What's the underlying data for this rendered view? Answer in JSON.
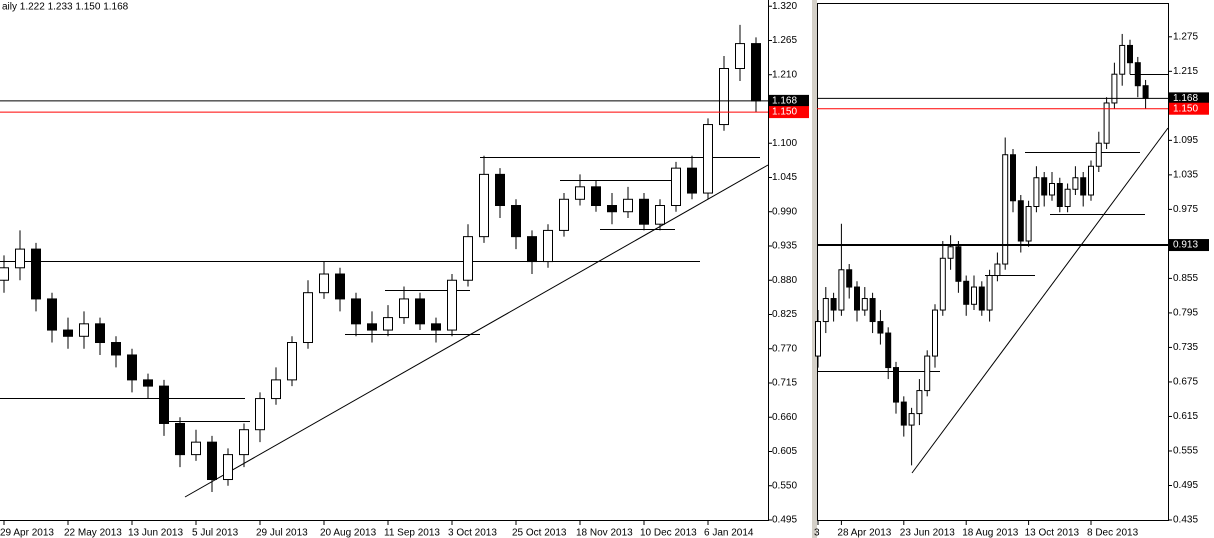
{
  "chart_data": [
    {
      "type": "candlestick",
      "title": "aily 1.222 1.233 1.150 1.168",
      "categories": [
        "29 Apr 2013",
        null,
        null,
        null,
        "22 May 2013",
        null,
        null,
        null,
        "13 Jun 2013",
        null,
        null,
        null,
        "5 Jul 2013",
        null,
        null,
        null,
        "29 Jul 2013",
        null,
        null,
        null,
        "20 Aug 2013",
        null,
        null,
        null,
        "11 Sep 2013",
        null,
        null,
        null,
        "3 Oct 2013",
        null,
        null,
        null,
        "25 Oct 2013",
        null,
        null,
        null,
        "18 Nov 2013",
        null,
        null,
        null,
        "10 Dec 2013",
        null,
        null,
        null,
        "6 Jan 2014",
        null,
        null,
        null
      ],
      "open": [
        0.88,
        0.9,
        0.93,
        0.85,
        0.8,
        0.79,
        0.81,
        0.78,
        0.76,
        0.72,
        0.71,
        0.65,
        0.6,
        0.62,
        0.56,
        0.6,
        0.64,
        0.69,
        0.72,
        0.78,
        0.86,
        0.89,
        0.85,
        0.81,
        0.8,
        0.82,
        0.85,
        0.81,
        0.8,
        0.88,
        0.95,
        1.05,
        1.0,
        0.95,
        0.91,
        0.96,
        1.01,
        1.03,
        1.0,
        0.99,
        1.01,
        0.97,
        1.0,
        1.06,
        1.02,
        1.13,
        1.22,
        1.26
      ],
      "high": [
        0.92,
        0.96,
        0.94,
        0.86,
        0.82,
        0.83,
        0.82,
        0.79,
        0.77,
        0.73,
        0.72,
        0.66,
        0.64,
        0.63,
        0.61,
        0.65,
        0.7,
        0.74,
        0.79,
        0.88,
        0.91,
        0.9,
        0.86,
        0.83,
        0.84,
        0.87,
        0.86,
        0.82,
        0.89,
        0.97,
        1.08,
        1.06,
        1.01,
        0.96,
        0.97,
        1.02,
        1.05,
        1.04,
        1.02,
        1.03,
        1.02,
        1.01,
        1.07,
        1.08,
        1.14,
        1.24,
        1.29,
        1.27
      ],
      "low": [
        0.86,
        0.88,
        0.83,
        0.78,
        0.77,
        0.77,
        0.76,
        0.74,
        0.7,
        0.69,
        0.63,
        0.58,
        0.59,
        0.54,
        0.55,
        0.58,
        0.62,
        0.68,
        0.71,
        0.77,
        0.85,
        0.83,
        0.79,
        0.78,
        0.79,
        0.81,
        0.8,
        0.78,
        0.79,
        0.87,
        0.94,
        0.98,
        0.93,
        0.89,
        0.9,
        0.95,
        1.0,
        0.99,
        0.97,
        0.98,
        0.96,
        0.96,
        0.99,
        1.01,
        1.01,
        1.12,
        1.2,
        1.15
      ],
      "close": [
        0.9,
        0.93,
        0.85,
        0.8,
        0.79,
        0.81,
        0.78,
        0.76,
        0.72,
        0.71,
        0.65,
        0.6,
        0.62,
        0.56,
        0.6,
        0.64,
        0.69,
        0.72,
        0.78,
        0.86,
        0.89,
        0.85,
        0.81,
        0.8,
        0.82,
        0.85,
        0.81,
        0.8,
        0.88,
        0.95,
        1.05,
        1.0,
        0.95,
        0.91,
        0.96,
        1.01,
        1.03,
        1.0,
        0.99,
        1.01,
        0.97,
        1.0,
        1.06,
        1.02,
        1.13,
        1.22,
        1.26,
        1.168
      ],
      "ylim": [
        0.495,
        1.33
      ],
      "yticks": [
        {
          "value": 1.32,
          "label": "1.320"
        },
        {
          "value": 1.265,
          "label": "1.265"
        },
        {
          "value": 1.21,
          "label": "1.210"
        },
        {
          "value": 1.1,
          "label": "1.100"
        },
        {
          "value": 1.045,
          "label": "1.045"
        },
        {
          "value": 0.99,
          "label": "0.990"
        },
        {
          "value": 0.935,
          "label": "0.935"
        },
        {
          "value": 0.88,
          "label": "0.880"
        },
        {
          "value": 0.825,
          "label": "0.825"
        },
        {
          "value": 0.77,
          "label": "0.770"
        },
        {
          "value": 0.715,
          "label": "0.715"
        },
        {
          "value": 0.66,
          "label": "0.660"
        },
        {
          "value": 0.605,
          "label": "0.605"
        },
        {
          "value": 0.55,
          "label": "0.550"
        },
        {
          "value": 0.495,
          "label": "0.495"
        }
      ],
      "price_lines": [
        {
          "value": 1.168,
          "label": "1.168",
          "color": "#000000"
        },
        {
          "value": 1.15,
          "label": "1.150",
          "color": "#ff0000"
        }
      ]
    },
    {
      "type": "candlestick",
      "categories": [
        "3",
        null,
        null,
        "28 Apr 2013",
        null,
        null,
        null,
        null,
        null,
        null,
        null,
        "23 Jun 2013",
        null,
        null,
        null,
        null,
        null,
        null,
        null,
        "18 Aug 2013",
        null,
        null,
        null,
        null,
        null,
        null,
        null,
        "13 Oct 2013",
        null,
        null,
        null,
        null,
        null,
        null,
        null,
        "8 Dec 2013",
        null,
        null,
        null,
        null,
        null,
        null,
        null
      ],
      "open": [
        0.72,
        0.78,
        0.82,
        0.8,
        0.87,
        0.84,
        0.8,
        0.82,
        0.78,
        0.76,
        0.7,
        0.64,
        0.6,
        0.62,
        0.66,
        0.72,
        0.8,
        0.89,
        0.91,
        0.85,
        0.81,
        0.84,
        0.8,
        0.86,
        0.88,
        1.07,
        0.99,
        0.92,
        0.98,
        1.03,
        1.0,
        1.02,
        0.98,
        1.01,
        1.03,
        1.0,
        1.05,
        1.09,
        1.16,
        1.21,
        1.26,
        1.23,
        1.19
      ],
      "high": [
        0.8,
        0.84,
        0.83,
        0.95,
        0.88,
        0.85,
        0.84,
        0.83,
        0.8,
        0.77,
        0.71,
        0.65,
        0.63,
        0.68,
        0.73,
        0.81,
        0.92,
        0.93,
        0.92,
        0.86,
        0.86,
        0.85,
        0.87,
        0.9,
        1.1,
        1.08,
        1.0,
        0.99,
        1.05,
        1.04,
        1.04,
        1.03,
        1.02,
        1.05,
        1.04,
        1.06,
        1.11,
        1.17,
        1.23,
        1.28,
        1.27,
        1.24,
        1.2
      ],
      "low": [
        0.7,
        0.76,
        0.78,
        0.79,
        0.82,
        0.78,
        0.79,
        0.76,
        0.74,
        0.68,
        0.62,
        0.58,
        0.53,
        0.6,
        0.65,
        0.7,
        0.79,
        0.87,
        0.83,
        0.79,
        0.8,
        0.79,
        0.78,
        0.85,
        0.87,
        0.97,
        0.9,
        0.91,
        0.97,
        0.98,
        0.99,
        0.97,
        0.97,
        1.0,
        0.98,
        0.99,
        1.04,
        1.08,
        1.15,
        1.19,
        1.21,
        1.17,
        1.15
      ],
      "close": [
        0.78,
        0.82,
        0.8,
        0.87,
        0.84,
        0.8,
        0.82,
        0.78,
        0.76,
        0.7,
        0.64,
        0.6,
        0.62,
        0.66,
        0.72,
        0.8,
        0.89,
        0.91,
        0.85,
        0.81,
        0.84,
        0.8,
        0.86,
        0.88,
        1.07,
        0.99,
        0.92,
        0.98,
        1.03,
        1.0,
        1.02,
        0.98,
        1.01,
        1.03,
        1.0,
        1.05,
        1.09,
        1.16,
        1.21,
        1.26,
        1.23,
        1.19,
        1.168
      ],
      "ylim": [
        0.435,
        1.339
      ],
      "yticks": [
        {
          "value": 1.275,
          "label": "1.275"
        },
        {
          "value": 1.215,
          "label": "1.215"
        },
        {
          "value": 1.095,
          "label": "1.095"
        },
        {
          "value": 1.035,
          "label": "1.035"
        },
        {
          "value": 0.975,
          "label": "0.975"
        },
        {
          "value": 0.855,
          "label": "0.855"
        },
        {
          "value": 0.795,
          "label": "0.795"
        },
        {
          "value": 0.735,
          "label": "0.735"
        },
        {
          "value": 0.675,
          "label": "0.675"
        },
        {
          "value": 0.615,
          "label": "0.615"
        },
        {
          "value": 0.555,
          "label": "0.555"
        },
        {
          "value": 0.495,
          "label": "0.495"
        },
        {
          "value": 0.435,
          "label": "0.435"
        }
      ],
      "price_lines": [
        {
          "value": 0.913,
          "label": "0.913",
          "color": "#000000",
          "width": 2
        },
        {
          "value": 1.168,
          "label": "1.168",
          "color": "#000000"
        },
        {
          "value": 1.15,
          "label": "1.150",
          "color": "#ff0000"
        }
      ]
    }
  ]
}
